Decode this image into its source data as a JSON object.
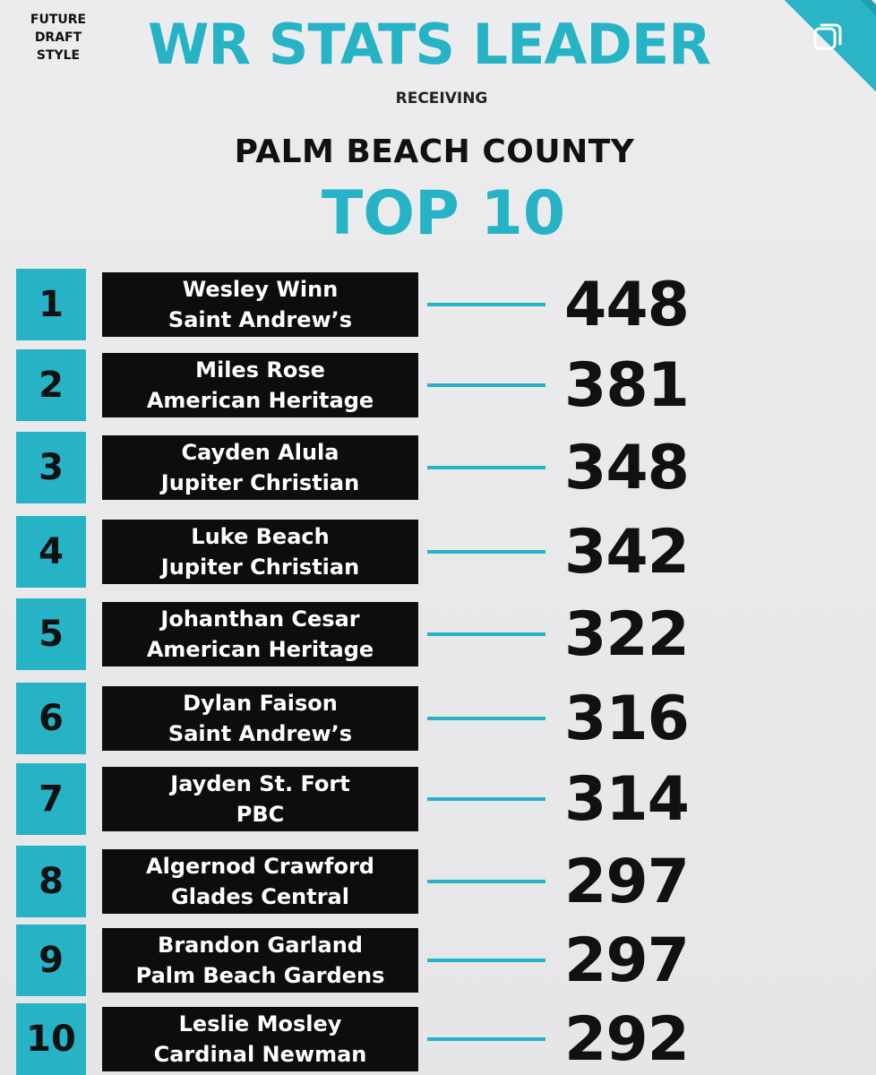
{
  "brand": {
    "lines": [
      "FUTURE",
      "DRAFT",
      "STYLE"
    ]
  },
  "header": {
    "title": "WR STATS LEADER",
    "subtitle": "RECEIVING",
    "region": "PALM BEACH COUNTY",
    "ranking_title": "TOP 10"
  },
  "corner": {
    "icon": "repost-icon"
  },
  "colors": {
    "accent": "#26b3c6",
    "name_box": "#0d0d0d",
    "background": "#ececee"
  },
  "leaders": [
    {
      "rank": "1",
      "player": "Wesley Winn",
      "school": "Saint Andrew’s",
      "value": "448"
    },
    {
      "rank": "2",
      "player": "Miles Rose",
      "school": "American Heritage",
      "value": "381"
    },
    {
      "rank": "3",
      "player": "Cayden Alula",
      "school": "Jupiter Christian",
      "value": "348"
    },
    {
      "rank": "4",
      "player": "Luke Beach",
      "school": "Jupiter Christian",
      "value": "342"
    },
    {
      "rank": "5",
      "player": "Johanthan Cesar",
      "school": "American Heritage",
      "value": "322"
    },
    {
      "rank": "6",
      "player": "Dylan Faison",
      "school": "Saint Andrew’s",
      "value": "316"
    },
    {
      "rank": "7",
      "player": "Jayden St. Fort",
      "school": "PBC",
      "value": "314"
    },
    {
      "rank": "8",
      "player": "Algernod Crawford",
      "school": "Glades Central",
      "value": "297"
    },
    {
      "rank": "9",
      "player": "Brandon Garland",
      "school": "Palm Beach Gardens",
      "value": "297"
    },
    {
      "rank": "10",
      "player": "Leslie Mosley",
      "school": "Cardinal Newman",
      "value": "292"
    }
  ]
}
